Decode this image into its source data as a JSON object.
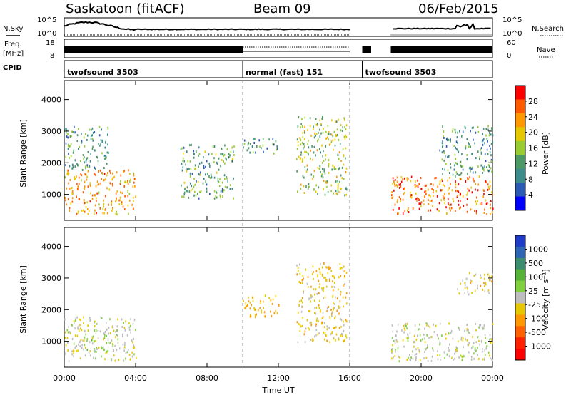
{
  "header": {
    "station": "Saskatoon (fitACF)",
    "beam": "Beam 09",
    "date": "06/Feb/2015"
  },
  "nsky_panel": {
    "left_label": "N.Sky",
    "right_label": "N.Search",
    "left_ticks": [
      "10^5",
      "10^0"
    ],
    "right_ticks": [
      "10^5",
      "10^0"
    ]
  },
  "freq_panel": {
    "left_label_top": "Freq.",
    "left_label_unit": "[MHz]",
    "left_ticks": [
      "18",
      "8"
    ],
    "right_ticks": [
      "60",
      "0"
    ],
    "right_label": "Nave"
  },
  "cpid_panel": {
    "label": "CPID",
    "segments": [
      {
        "name": "twofsound 3503",
        "start_hr": 0,
        "end_hr": 10.0
      },
      {
        "name": "normal (fast) 151",
        "start_hr": 10.0,
        "end_hr": 16.7
      },
      {
        "name": "twofsound 3503",
        "start_hr": 16.7,
        "end_hr": 24
      }
    ]
  },
  "power_panel": {
    "ylabel": "Slant Range [km]",
    "cbar_label": "Power [dB]",
    "cbar_ticks": [
      "28",
      "24",
      "20",
      "16",
      "12",
      "8",
      "4"
    ],
    "cbar_colors": [
      "#ff0000",
      "#ff5a00",
      "#ff9900",
      "#e6c800",
      "#99cc33",
      "#4c9966",
      "#3c8c8c",
      "#2b5ab4",
      "#0000ff"
    ]
  },
  "velocity_panel": {
    "ylabel": "Slant Range [km]",
    "cbar_label": "Velocity [m s⁻¹]",
    "cbar_ticks": [
      "1000",
      "500",
      "100",
      "25",
      "-25",
      "-100",
      "-500",
      "-1000"
    ],
    "cbar_colors": [
      "#1e3cc8",
      "#2e64b4",
      "#3c8c6e",
      "#55b437",
      "#80d040",
      "#bebebe",
      "#e6c800",
      "#ff9900",
      "#ff6000",
      "#ff2000",
      "#ff0000"
    ]
  },
  "x_axis": {
    "label": "Time UT",
    "ticks": [
      "00:00",
      "04:00",
      "08:00",
      "12:00",
      "16:00",
      "20:00",
      "00:00"
    ]
  },
  "y_axis_ticks": [
    "4000",
    "3000",
    "2000",
    "1000"
  ],
  "chart_data": {
    "type": "heatmap",
    "title": "Saskatoon (fitACF) Beam 09 06/Feb/2015",
    "xlabel": "Time UT",
    "ylabel": "Slant Range [km]",
    "xlim_hours": [
      0,
      24
    ],
    "ylim_km": [
      180,
      4600
    ],
    "data_gap_hours": [
      16.0,
      18.3
    ],
    "power_db_range": [
      0,
      32
    ],
    "velocity_ms_range": [
      -1000,
      1000
    ],
    "power_regions": [
      {
        "t0": 0.0,
        "t1": 4.0,
        "r0": 400,
        "r1": 1800,
        "power_db": 24
      },
      {
        "t0": 0.0,
        "t1": 2.5,
        "r0": 1800,
        "r1": 3200,
        "power_db": 10
      },
      {
        "t0": 6.5,
        "t1": 9.5,
        "r0": 900,
        "r1": 2600,
        "power_db": 12
      },
      {
        "t0": 10.0,
        "t1": 12.0,
        "r0": 2300,
        "r1": 2800,
        "power_db": 10
      },
      {
        "t0": 13.0,
        "t1": 15.8,
        "r0": 1000,
        "r1": 3500,
        "power_db": 16
      },
      {
        "t0": 18.3,
        "t1": 24.0,
        "r0": 400,
        "r1": 1600,
        "power_db": 26
      },
      {
        "t0": 21.0,
        "t1": 24.0,
        "r0": 1600,
        "r1": 3200,
        "power_db": 10
      }
    ],
    "velocity_regions": [
      {
        "t0": 0.0,
        "t1": 4.0,
        "r0": 400,
        "r1": 1800,
        "velocity_ms": 0
      },
      {
        "t0": 1.0,
        "t1": 2.5,
        "r0": 700,
        "r1": 1200,
        "velocity_ms": 150
      },
      {
        "t0": 10.0,
        "t1": 12.0,
        "r0": 1800,
        "r1": 2500,
        "velocity_ms": -300
      },
      {
        "t0": 13.0,
        "t1": 15.8,
        "r0": 1000,
        "r1": 3500,
        "velocity_ms": -200
      },
      {
        "t0": 18.3,
        "t1": 24.0,
        "r0": 400,
        "r1": 1600,
        "velocity_ms": 0
      },
      {
        "t0": 22.0,
        "t1": 24.0,
        "r0": 2500,
        "r1": 3200,
        "velocity_ms": -150
      }
    ]
  }
}
